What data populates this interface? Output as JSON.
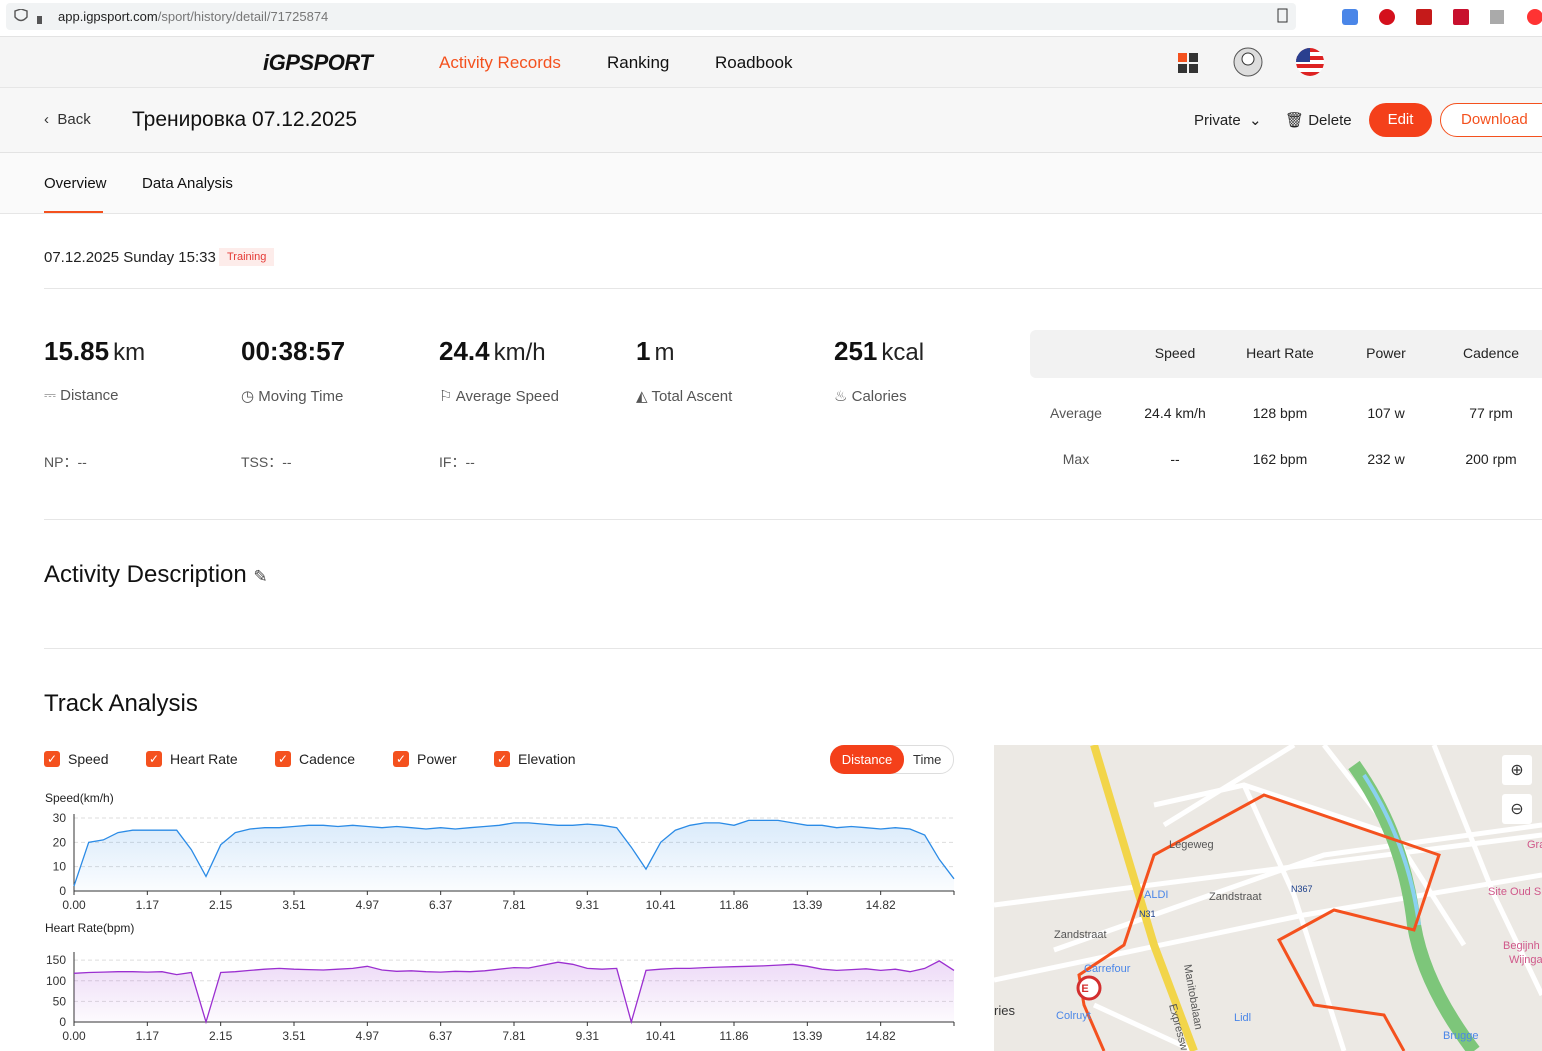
{
  "browser": {
    "host": "app.igpsport.com",
    "path": "/sport/history/detail/71725874"
  },
  "nav": {
    "logo": "iGPSPORT",
    "items": [
      "Activity Records",
      "Ranking",
      "Roadbook"
    ]
  },
  "header": {
    "back": "Back",
    "title": "Тренировка 07.12.2025",
    "privacy": "Private",
    "delete": "Delete",
    "edit": "Edit",
    "download": "Download"
  },
  "tabs": [
    "Overview",
    "Data Analysis"
  ],
  "summary": {
    "datetime": "07.12.2025 Sunday 15:33",
    "tag": "Training"
  },
  "stats": [
    {
      "value": 15.85,
      "unit": "km",
      "label": "Distance"
    },
    {
      "value": "00:38:57",
      "label": "Moving Time"
    },
    {
      "value": 24.4,
      "unit": "km/h",
      "label": "Average Speed"
    },
    {
      "value": 1,
      "unit": "m",
      "label": "Total Ascent"
    },
    {
      "value": 251,
      "unit": "kcal",
      "label": "Calories"
    }
  ],
  "extra": [
    {
      "label": "NP：",
      "value": "--"
    },
    {
      "label": "TSS：",
      "value": "--"
    },
    {
      "label": "IF：",
      "value": "--"
    }
  ],
  "table": {
    "columns": [
      "Speed",
      "Heart Rate",
      "Power",
      "Cadence"
    ],
    "rows": [
      {
        "label": "Average",
        "cells": [
          "24.4 km/h",
          "128 bpm",
          "107 w",
          "77 rpm"
        ]
      },
      {
        "label": "Max",
        "cells": [
          "--",
          "162 bpm",
          "232 w",
          "200 rpm"
        ]
      }
    ]
  },
  "description": {
    "title": "Activity Description"
  },
  "track": {
    "title": "Track Analysis",
    "toggles": [
      "Speed",
      "Heart Rate",
      "Cadence",
      "Power",
      "Elevation"
    ],
    "modes": [
      "Distance",
      "Time"
    ]
  },
  "chart_data": [
    {
      "type": "line",
      "title": "Speed(km/h)",
      "color": "#2b8be6",
      "categories": [
        {
          "value": 0,
          "label": "0.00"
        },
        null,
        null,
        null,
        null,
        "1.17",
        null,
        null,
        null,
        null,
        "2.15",
        null,
        null,
        null,
        null,
        "3.51",
        null,
        null,
        null,
        null,
        "4.97",
        null,
        null,
        null,
        null,
        "6.37",
        null,
        null,
        null,
        null,
        "7.81",
        null,
        null,
        null,
        null,
        "9.31",
        null,
        null,
        null,
        null,
        "10.41",
        null,
        null,
        null,
        null,
        "11.86",
        null,
        null,
        null,
        null,
        "13.39",
        null,
        null,
        null,
        null,
        "14.82",
        null,
        null,
        null,
        null,
        null
      ],
      "values": [
        2,
        20,
        21,
        24,
        25,
        25,
        25,
        25,
        17,
        6,
        19,
        24,
        25.5,
        26,
        26,
        26.5,
        27,
        27,
        26.5,
        27,
        26.5,
        26,
        26.5,
        26,
        25.5,
        26,
        25.5,
        26,
        26.5,
        27,
        28,
        28,
        27.5,
        27,
        27,
        27.5,
        27,
        26,
        18,
        9,
        20,
        25,
        27,
        28,
        28,
        27,
        29,
        29,
        29,
        28,
        27,
        27,
        26,
        26.5,
        26,
        25.5,
        26,
        25.5,
        23,
        13,
        5
      ],
      "ylim": [
        0,
        30
      ],
      "yticks": [
        0,
        10,
        20,
        30
      ],
      "grid": true
    },
    {
      "type": "line",
      "title": "Heart Rate(bpm)",
      "color": "#9b2fd0",
      "categories": [
        {
          "value": 0,
          "label": "0.00"
        },
        null,
        null,
        null,
        null,
        "1.17",
        null,
        null,
        null,
        null,
        "2.15",
        null,
        null,
        null,
        null,
        "3.51",
        null,
        null,
        null,
        null,
        "4.97",
        null,
        null,
        null,
        null,
        "6.37",
        null,
        null,
        null,
        null,
        "7.81",
        null,
        null,
        null,
        null,
        "9.31",
        null,
        null,
        null,
        null,
        "10.41",
        null,
        null,
        null,
        null,
        "11.86",
        null,
        null,
        null,
        null,
        "13.39",
        null,
        null,
        null,
        null,
        "14.82",
        null,
        null,
        null,
        null,
        null
      ],
      "values": [
        118,
        120,
        121,
        122,
        122,
        121,
        122,
        115,
        120,
        0,
        120,
        122,
        125,
        128,
        130,
        128,
        127,
        126,
        128,
        130,
        135,
        126,
        123,
        124,
        122,
        121,
        123,
        122,
        124,
        128,
        132,
        131,
        138,
        145,
        140,
        130,
        128,
        130,
        0,
        125,
        128,
        130,
        130,
        132,
        133,
        134,
        135,
        136,
        138,
        140,
        135,
        128,
        125,
        127,
        129,
        125,
        128,
        122,
        130,
        148,
        125
      ],
      "ylim": [
        0,
        160
      ],
      "yticks": [
        0,
        50,
        100,
        150
      ],
      "grid": true
    }
  ],
  "map": {
    "labels": [
      "Legeweg",
      "Zandstraat",
      "Zandstraat",
      "ALDI",
      "N31",
      "N367",
      "Carrefour",
      "Colruyt",
      "Lidl",
      "Brugge",
      "Manitobalaan",
      "Expressw",
      "ries",
      "Site Oud Si",
      "Begijnh",
      "Wijnga",
      "Gra",
      "E"
    ]
  }
}
